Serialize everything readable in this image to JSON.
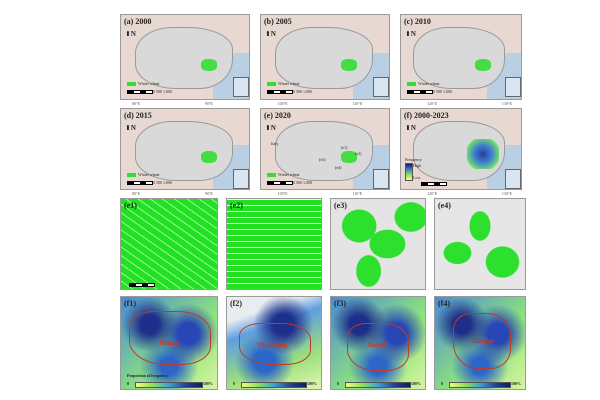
{
  "top_panels": [
    {
      "label": "(a) 2000"
    },
    {
      "label": "(b) 2005"
    },
    {
      "label": "(c) 2010"
    },
    {
      "label": "(d) 2015"
    },
    {
      "label": "(e) 2020"
    },
    {
      "label": "(f) 2000-2023"
    }
  ],
  "lon_ticks": [
    "80°E",
    "90°E",
    "100°E",
    "110°E",
    "120°E",
    "130°E"
  ],
  "lat_ticks": [
    "40°N",
    "30°N",
    "20°N"
  ],
  "legend": {
    "wheat": "Winter wheat",
    "scale": "0  500 1,000"
  },
  "freq_legend": {
    "title": "Frequency",
    "high": "High",
    "low": "Low"
  },
  "annotations": {
    "e_sub": "(e1)",
    "e_sub2": "(e2)",
    "e_sub3": "(e3)",
    "e_sub4": "(e4)",
    "italy": "Italy"
  },
  "mid_panels": [
    {
      "label": "(e1)"
    },
    {
      "label": "(e2)"
    },
    {
      "label": "(e3)"
    },
    {
      "label": "(e4)"
    }
  ],
  "bottom_panels": [
    {
      "label": "(f1)",
      "province": "Henan"
    },
    {
      "label": "(f2)",
      "province": "Shandong"
    },
    {
      "label": "(f3)",
      "province": "Anhui"
    },
    {
      "label": "(f4)",
      "province": "Jiangsu"
    }
  ],
  "colorbar": {
    "title": "Proportion of frequency",
    "min": "0",
    "max": "100%"
  },
  "colors": {
    "wheat": "#33dd33",
    "sea": "#b9cfe3",
    "land": "#d9d9d9",
    "border": "#c0392b"
  }
}
